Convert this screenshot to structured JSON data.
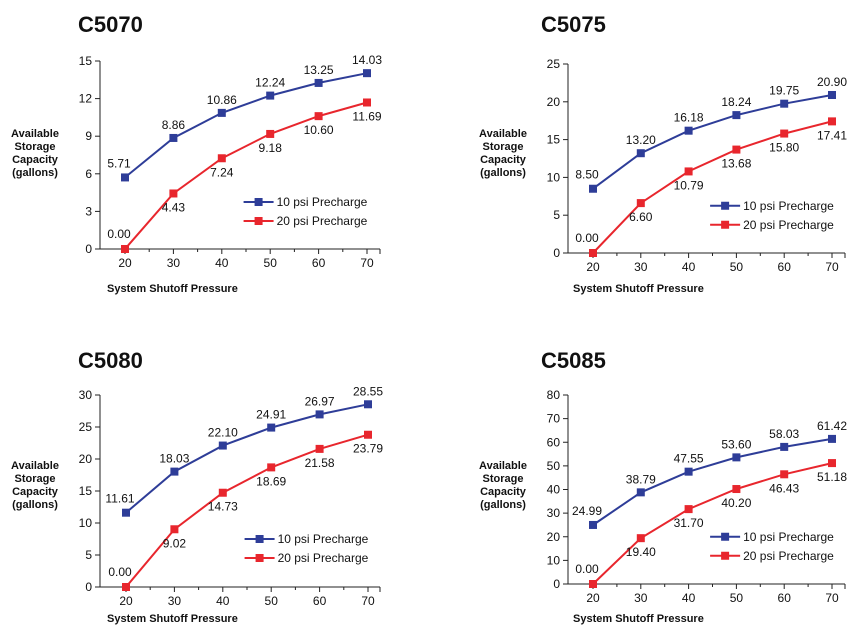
{
  "colors": {
    "series1": "#2e3d98",
    "series2": "#e8262d"
  },
  "chart_data": [
    {
      "type": "line",
      "title": "C5070",
      "xlabel": "System Shutoff Pressure",
      "ylabel": "Available Storage Capacity (gallons)",
      "ylabel_lines": [
        "Available",
        "Storage",
        "Capacity",
        "(gallons)"
      ],
      "x": [
        20,
        30,
        40,
        50,
        60,
        70
      ],
      "ylim": [
        0,
        15
      ],
      "yticks": [
        0,
        3,
        6,
        9,
        12,
        15
      ],
      "grid": false,
      "legend": "lower-right",
      "series": [
        {
          "name": "10 psi Precharge",
          "values": [
            5.71,
            8.86,
            10.86,
            12.24,
            13.25,
            14.03
          ],
          "labels": [
            "5.71",
            "8.86",
            "10.86",
            "12.24",
            "13.25",
            "14.03"
          ]
        },
        {
          "name": "20 psi Precharge",
          "values": [
            0.0,
            4.43,
            7.24,
            9.18,
            10.6,
            11.69
          ],
          "labels": [
            "0.00",
            "4.43",
            "7.24",
            "9.18",
            "10.60",
            "11.69"
          ]
        }
      ]
    },
    {
      "type": "line",
      "title": "C5075",
      "xlabel": "System Shutoff Pressure",
      "ylabel": "Available Storage Capacity (gallons)",
      "ylabel_lines": [
        "Available",
        "Storage",
        "Capacity",
        "(gallons)"
      ],
      "x": [
        20,
        30,
        40,
        50,
        60,
        70
      ],
      "ylim": [
        0,
        25
      ],
      "yticks": [
        0,
        5,
        10,
        15,
        20,
        25
      ],
      "grid": false,
      "legend": "lower-right",
      "series": [
        {
          "name": "10 psi Precharge",
          "values": [
            8.5,
            13.2,
            16.18,
            18.24,
            19.75,
            20.9
          ],
          "labels": [
            "8.50",
            "13.20",
            "16.18",
            "18.24",
            "19.75",
            "20.90"
          ]
        },
        {
          "name": "20 psi Precharge",
          "values": [
            0.0,
            6.6,
            10.79,
            13.68,
            15.8,
            17.41
          ],
          "labels": [
            "0.00",
            "6.60",
            "10.79",
            "13.68",
            "15.80",
            "17.41"
          ]
        }
      ]
    },
    {
      "type": "line",
      "title": "C5080",
      "xlabel": "System Shutoff Pressure",
      "ylabel": "Available Storage Capacity (gallons)",
      "ylabel_lines": [
        "Available",
        "Storage",
        "Capacity",
        "(gallons)"
      ],
      "x": [
        20,
        30,
        40,
        50,
        60,
        70
      ],
      "ylim": [
        0,
        30
      ],
      "yticks": [
        0,
        5,
        10,
        15,
        20,
        25,
        30
      ],
      "grid": false,
      "legend": "lower-right",
      "series": [
        {
          "name": "10 psi Precharge",
          "values": [
            11.61,
            18.03,
            22.1,
            24.91,
            26.97,
            28.55
          ],
          "labels": [
            "11.61",
            "18.03",
            "22.10",
            "24.91",
            "26.97",
            "28.55"
          ]
        },
        {
          "name": "20 psi Precharge",
          "values": [
            0.0,
            9.02,
            14.73,
            18.69,
            21.58,
            23.79
          ],
          "labels": [
            "0.00",
            "9.02",
            "14.73",
            "18.69",
            "21.58",
            "23.79"
          ]
        }
      ]
    },
    {
      "type": "line",
      "title": "C5085",
      "xlabel": "System Shutoff Pressure",
      "ylabel": "Available Storage Capacity (gallons)",
      "ylabel_lines": [
        "Available",
        "Storage",
        "Capacity",
        "(gallons)"
      ],
      "x": [
        20,
        30,
        40,
        50,
        60,
        70
      ],
      "ylim": [
        0,
        80
      ],
      "yticks": [
        0,
        10,
        20,
        30,
        40,
        50,
        60,
        70,
        80
      ],
      "grid": false,
      "legend": "lower-right",
      "series": [
        {
          "name": "10 psi Precharge",
          "values": [
            24.99,
            38.79,
            47.55,
            53.6,
            58.03,
            61.42
          ],
          "labels": [
            "24.99",
            "38.79",
            "47.55",
            "53.60",
            "58.03",
            "61.42"
          ]
        },
        {
          "name": "20 psi Precharge",
          "values": [
            0.0,
            19.4,
            31.7,
            40.2,
            46.43,
            51.18
          ],
          "labels": [
            "0.00",
            "19.40",
            "31.70",
            "40.20",
            "46.43",
            "51.18"
          ]
        }
      ]
    }
  ]
}
